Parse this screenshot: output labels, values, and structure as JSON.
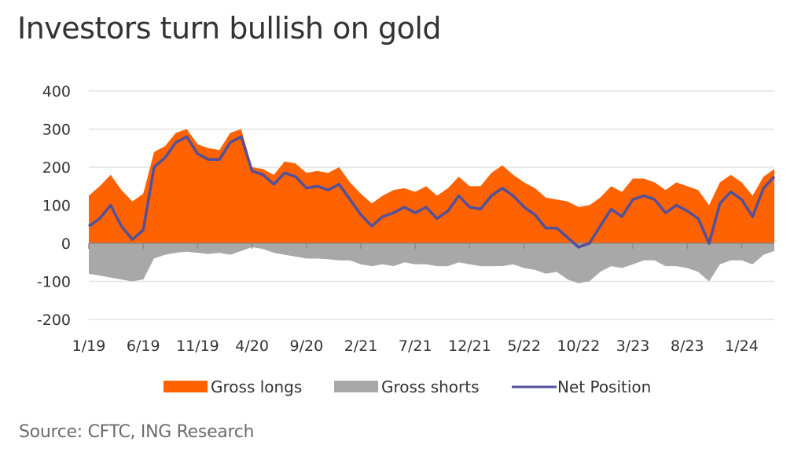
{
  "title": "Investors turn bullish on gold",
  "source": "Source: CFTC, ING Research",
  "colors": {
    "longs": "#FF6200",
    "shorts": "#A8A8A8",
    "net": "#525199",
    "grid": "#E3E3E3",
    "axis": "#8A8A8A"
  },
  "chart_data": {
    "type": "area",
    "title": "Investors turn bullish on gold",
    "xlabel": "",
    "ylabel": "",
    "ylim": [
      -200,
      400
    ],
    "yticks": [
      400,
      300,
      200,
      100,
      0,
      -100,
      -200
    ],
    "grid": true,
    "legend_position": "bottom",
    "xtick_labels": [
      "1/19",
      "6/19",
      "11/19",
      "4/20",
      "9/20",
      "2/21",
      "7/21",
      "12/21",
      "5/22",
      "10/22",
      "3/23",
      "8/23",
      "1/24"
    ],
    "x": [
      "1/19",
      "2/19",
      "3/19",
      "4/19",
      "5/19",
      "6/19",
      "7/19",
      "8/19",
      "9/19",
      "10/19",
      "11/19",
      "12/19",
      "1/20",
      "2/20",
      "3/20",
      "4/20",
      "5/20",
      "6/20",
      "7/20",
      "8/20",
      "9/20",
      "10/20",
      "11/20",
      "12/20",
      "1/21",
      "2/21",
      "3/21",
      "4/21",
      "5/21",
      "6/21",
      "7/21",
      "8/21",
      "9/21",
      "10/21",
      "11/21",
      "12/21",
      "1/22",
      "2/22",
      "3/22",
      "4/22",
      "5/22",
      "6/22",
      "7/22",
      "8/22",
      "9/22",
      "10/22",
      "11/22",
      "12/22",
      "1/23",
      "2/23",
      "3/23",
      "4/23",
      "5/23",
      "6/23",
      "7/23",
      "8/23",
      "9/23",
      "10/23",
      "11/23",
      "12/23",
      "1/24",
      "2/24",
      "3/24",
      "4/24"
    ],
    "series": [
      {
        "name": "Gross longs",
        "type": "area",
        "values": [
          125,
          150,
          180,
          140,
          110,
          130,
          240,
          255,
          290,
          300,
          260,
          250,
          245,
          290,
          300,
          200,
          195,
          180,
          215,
          210,
          185,
          190,
          185,
          200,
          160,
          130,
          105,
          125,
          140,
          145,
          135,
          150,
          125,
          145,
          175,
          150,
          150,
          185,
          205,
          180,
          160,
          145,
          120,
          115,
          110,
          95,
          100,
          120,
          150,
          135,
          170,
          170,
          160,
          140,
          160,
          150,
          140,
          100,
          160,
          180,
          160,
          125,
          175,
          195
        ]
      },
      {
        "name": "Gross shorts",
        "type": "area",
        "values": [
          -80,
          -85,
          -90,
          -95,
          -100,
          -95,
          -40,
          -30,
          -25,
          -22,
          -25,
          -28,
          -25,
          -30,
          -20,
          -10,
          -15,
          -25,
          -30,
          -35,
          -40,
          -40,
          -42,
          -45,
          -45,
          -55,
          -60,
          -55,
          -60,
          -50,
          -55,
          -55,
          -60,
          -60,
          -50,
          -55,
          -60,
          -60,
          -60,
          -55,
          -65,
          -70,
          -80,
          -75,
          -95,
          -105,
          -100,
          -75,
          -60,
          -65,
          -55,
          -45,
          -45,
          -60,
          -60,
          -65,
          -75,
          -100,
          -55,
          -45,
          -45,
          -55,
          -30,
          -20
        ]
      },
      {
        "name": "Net Position",
        "type": "line",
        "values": [
          45,
          65,
          100,
          45,
          10,
          35,
          200,
          225,
          265,
          280,
          235,
          220,
          220,
          265,
          280,
          190,
          180,
          155,
          185,
          175,
          145,
          150,
          140,
          155,
          115,
          75,
          45,
          70,
          80,
          95,
          80,
          95,
          65,
          85,
          125,
          95,
          90,
          125,
          145,
          125,
          95,
          75,
          40,
          40,
          15,
          -10,
          0,
          45,
          90,
          70,
          115,
          125,
          115,
          80,
          100,
          85,
          65,
          0,
          105,
          135,
          115,
          70,
          145,
          175
        ]
      }
    ]
  }
}
